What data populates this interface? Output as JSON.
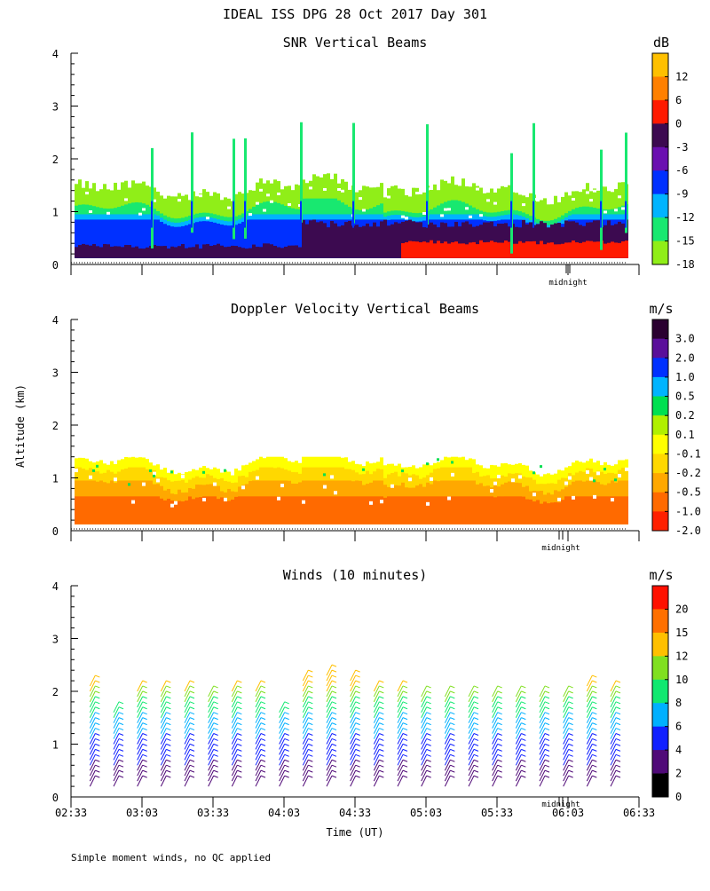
{
  "page": {
    "title": "IDEAL ISS DPG  28 Oct 2017 Day 301",
    "y_label": "Altitude (km)",
    "x_label": "Time (UT)",
    "footnote": "Simple moment winds, no QC applied",
    "midnight_label": "midnight"
  },
  "chart_data": [
    {
      "type": "heatmap",
      "title": "SNR Vertical Beams",
      "ylabel": "Altitude (km)",
      "ylim": [
        0,
        4
      ],
      "yticks": [
        "0",
        "1",
        "2",
        "3",
        "4"
      ],
      "xlim": [
        "02:33",
        "06:33"
      ],
      "colorbar": {
        "unit": "dB",
        "labels": [
          "12",
          "6",
          "0",
          "-3",
          "-6",
          "-9",
          "-12",
          "-15",
          "-18"
        ],
        "colors": [
          "#ffc000",
          "#ff8000",
          "#ff1a00",
          "#3c0a50",
          "#6a0fb0",
          "#0030ff",
          "#00b4ff",
          "#18e870",
          "#90ee18",
          "#ffc000"
        ]
      },
      "layers": [
        {
          "level": "-18",
          "color": "#90ee18",
          "top_km": 1.5
        },
        {
          "level": "-15",
          "color": "#18e870",
          "top_km": 1.25
        },
        {
          "level": "-12",
          "color": "#00b4ff",
          "top_km": 0.95
        },
        {
          "level": "-9",
          "color": "#0030ff",
          "top_km": 0.85
        },
        {
          "level": "-3",
          "color": "#3c0a50",
          "top_km": 0.6
        },
        {
          "level": "0",
          "color": "#ff1a00",
          "top_km": 0.4
        }
      ]
    },
    {
      "type": "heatmap",
      "title": "Doppler Velocity Vertical Beams",
      "ylabel": "Altitude (km)",
      "ylim": [
        0,
        4
      ],
      "yticks": [
        "0",
        "1",
        "2",
        "3",
        "4"
      ],
      "xlim": [
        "02:33",
        "06:33"
      ],
      "colorbar": {
        "unit": "m/s",
        "labels": [
          "3.0",
          "2.0",
          "1.0",
          "0.5",
          "0.2",
          "0.1",
          "-0.1",
          "-0.2",
          "-0.5",
          "-1.0",
          "-2.0"
        ],
        "colors": [
          "#2a0030",
          "#5a0f9a",
          "#0030ff",
          "#00b4ff",
          "#00e050",
          "#b0f000",
          "#ffff00",
          "#ffd800",
          "#ffa800",
          "#ff6a00",
          "#ff2000",
          "#ff0000"
        ]
      },
      "layers": [
        {
          "level": "-0.1",
          "color": "#ffff00",
          "top_km": 1.2
        },
        {
          "level": "-0.2",
          "color": "#ffd800",
          "top_km": 1.0
        },
        {
          "level": "-0.5",
          "color": "#ffa800",
          "top_km": 0.75
        },
        {
          "level": "-1.0",
          "color": "#ff6a00",
          "top_km": 0.45
        }
      ]
    },
    {
      "type": "wind-barbs",
      "title": "Winds (10 minutes)",
      "ylabel": "Altitude (km)",
      "xlabel": "Time (UT)",
      "ylim": [
        0,
        4
      ],
      "yticks": [
        "0",
        "1",
        "2",
        "3",
        "4"
      ],
      "xticks": [
        "02:33",
        "03:03",
        "03:33",
        "04:03",
        "04:33",
        "05:03",
        "05:33",
        "06:03",
        "06:33"
      ],
      "colorbar": {
        "unit": "m/s",
        "labels": [
          "20",
          "15",
          "12",
          "10",
          "8",
          "6",
          "4",
          "2",
          "0"
        ],
        "colors": [
          "#ff1000",
          "#ff7000",
          "#ffc000",
          "#80e020",
          "#10e870",
          "#00b0ff",
          "#1020ff",
          "#500a78",
          "#000000",
          "#ff1000"
        ]
      },
      "profile_times": [
        "02:38",
        "02:48",
        "02:58",
        "03:08",
        "03:18",
        "03:28",
        "03:38",
        "03:48",
        "03:58",
        "04:08",
        "04:18",
        "04:28",
        "04:38",
        "04:48",
        "04:58",
        "05:08",
        "05:18",
        "05:28",
        "05:38",
        "05:48",
        "05:58",
        "06:08",
        "06:18"
      ],
      "profile_tops_km": [
        2.2,
        1.7,
        2.1,
        2.1,
        2.1,
        2.0,
        2.1,
        2.1,
        1.7,
        2.3,
        2.4,
        2.3,
        2.1,
        2.1,
        2.0,
        2.0,
        2.0,
        2.0,
        2.0,
        2.0,
        2.0,
        2.2,
        2.1
      ]
    }
  ]
}
